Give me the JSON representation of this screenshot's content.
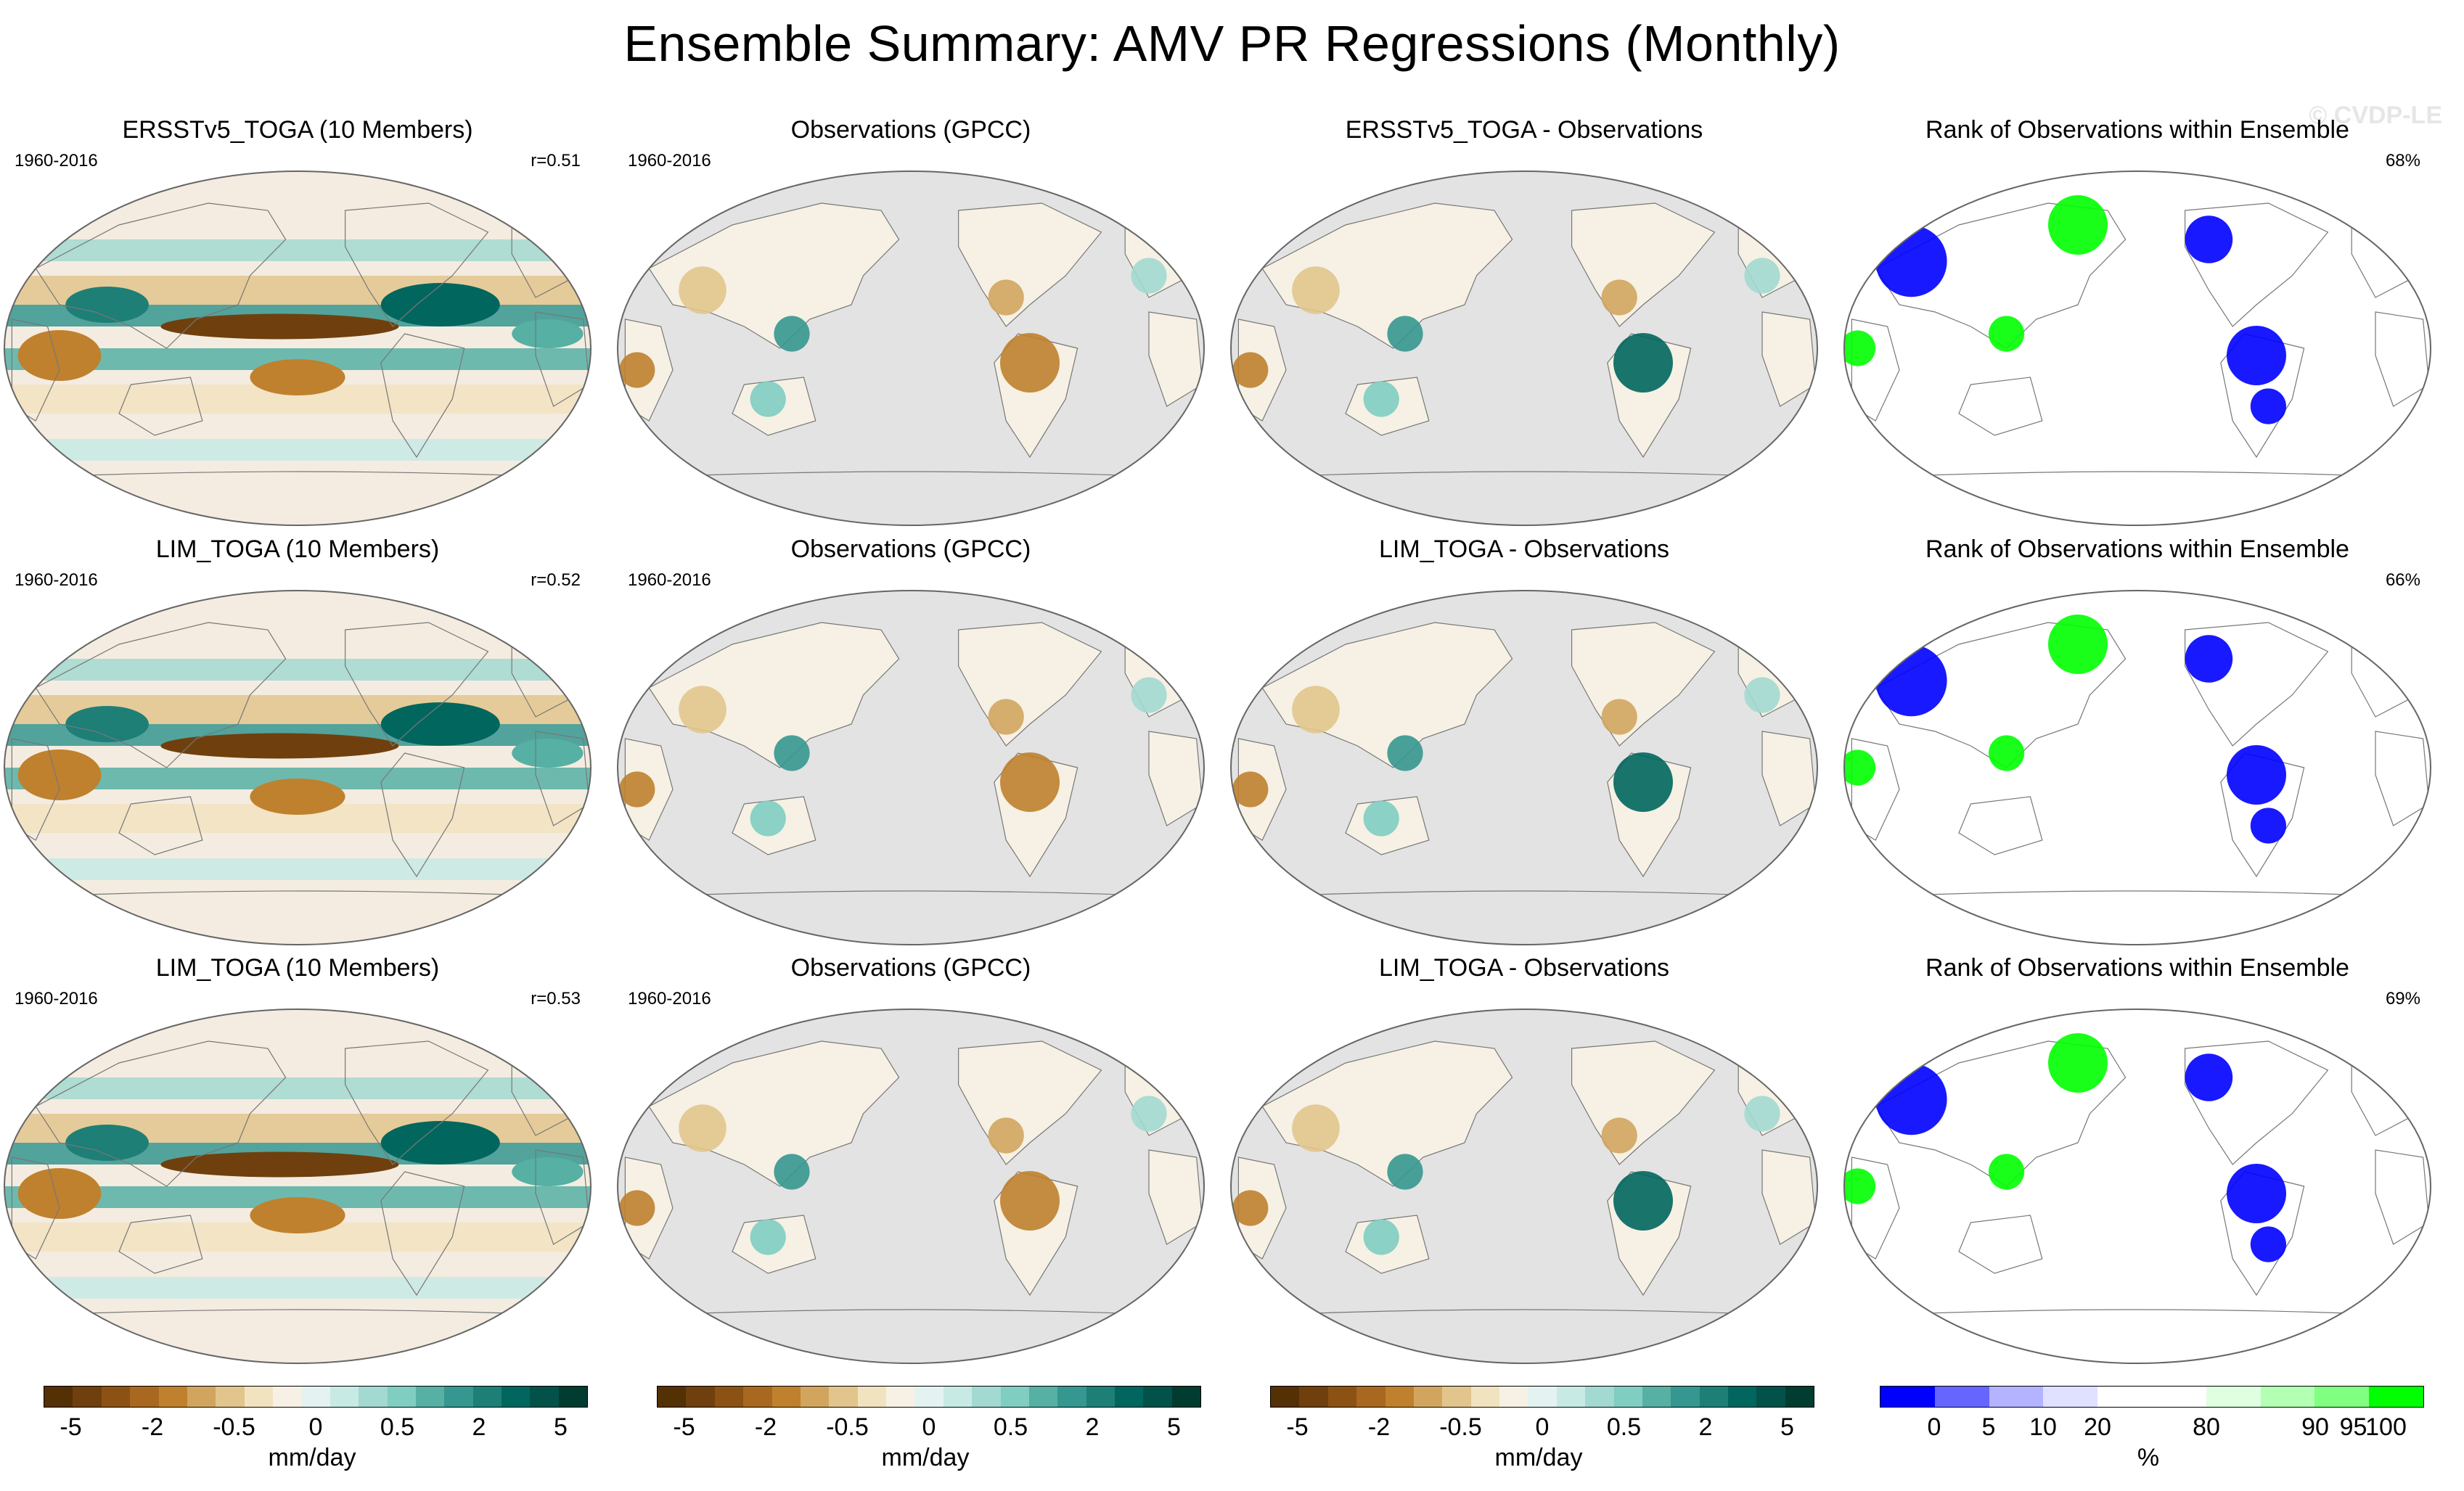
{
  "title": "Ensemble Summary: AMV PR Regressions (Monthly)",
  "watermark": "© CVDP-LE",
  "rows": [
    {
      "panels": [
        {
          "title": "ERSSTv5_TOGA (10 Members)",
          "left": "1960-2016",
          "right": "r=0.51",
          "kind": "model"
        },
        {
          "title": "Observations (GPCC)",
          "left": "1960-2016",
          "right": "",
          "kind": "obs"
        },
        {
          "title": "ERSSTv5_TOGA - Observations",
          "left": "",
          "right": "",
          "kind": "diff"
        },
        {
          "title": "Rank of Observations within Ensemble",
          "left": "",
          "right": "68%",
          "kind": "rank"
        }
      ]
    },
    {
      "panels": [
        {
          "title": "LIM_TOGA (10 Members)",
          "left": "1960-2016",
          "right": "r=0.52",
          "kind": "model"
        },
        {
          "title": "Observations (GPCC)",
          "left": "1960-2016",
          "right": "",
          "kind": "obs"
        },
        {
          "title": "LIM_TOGA - Observations",
          "left": "",
          "right": "",
          "kind": "diff"
        },
        {
          "title": "Rank of Observations within Ensemble",
          "left": "",
          "right": "66%",
          "kind": "rank"
        }
      ]
    },
    {
      "panels": [
        {
          "title": "LIM_TOGA (10 Members)",
          "left": "1960-2016",
          "right": "r=0.53",
          "kind": "model"
        },
        {
          "title": "Observations (GPCC)",
          "left": "1960-2016",
          "right": "",
          "kind": "obs"
        },
        {
          "title": "LIM_TOGA - Observations",
          "left": "",
          "right": "",
          "kind": "diff"
        },
        {
          "title": "Rank of Observations within Ensemble",
          "left": "",
          "right": "69%",
          "kind": "rank"
        }
      ]
    }
  ],
  "colorbars": [
    {
      "colors": [
        "#543005",
        "#6f400d",
        "#8c5214",
        "#a9681f",
        "#bf812d",
        "#d2a55f",
        "#e2c58c",
        "#f1e3c0",
        "#f6f1e4",
        "#e4f3f1",
        "#c7eae5",
        "#a2d9d0",
        "#80cdc1",
        "#56b0a4",
        "#35978f",
        "#1e7f77",
        "#01665e",
        "#02524a",
        "#003c30"
      ],
      "labels": [
        "-5",
        "-2",
        "-0.5",
        "0",
        "0.5",
        "2",
        "5"
      ],
      "unit": "mm/day"
    },
    {
      "colors": [
        "#543005",
        "#6f400d",
        "#8c5214",
        "#a9681f",
        "#bf812d",
        "#d2a55f",
        "#e2c58c",
        "#f1e3c0",
        "#f6f1e4",
        "#e4f3f1",
        "#c7eae5",
        "#a2d9d0",
        "#80cdc1",
        "#56b0a4",
        "#35978f",
        "#1e7f77",
        "#01665e",
        "#02524a",
        "#003c30"
      ],
      "labels": [
        "-5",
        "-2",
        "-0.5",
        "0",
        "0.5",
        "2",
        "5"
      ],
      "unit": "mm/day"
    },
    {
      "colors": [
        "#543005",
        "#6f400d",
        "#8c5214",
        "#a9681f",
        "#bf812d",
        "#d2a55f",
        "#e2c58c",
        "#f1e3c0",
        "#f6f1e4",
        "#e4f3f1",
        "#c7eae5",
        "#a2d9d0",
        "#80cdc1",
        "#56b0a4",
        "#35978f",
        "#1e7f77",
        "#01665e",
        "#02524a",
        "#003c30"
      ],
      "labels": [
        "-5",
        "-2",
        "-0.5",
        "0",
        "0.5",
        "2",
        "5"
      ],
      "unit": "mm/day"
    },
    {
      "colors": [
        "#0000ff",
        "#6666ff",
        "#b3b3ff",
        "#e0e0ff",
        "#ffffff",
        "#ffffff",
        "#e0ffe0",
        "#b3ffb3",
        "#80ff80",
        "#00ff00"
      ],
      "labels": [
        "0",
        "5",
        "10",
        "20",
        "80",
        "90",
        "95",
        "100"
      ],
      "unit": "%"
    }
  ],
  "palette": {
    "ocean_fill": "#e3e3e3",
    "coast": "#777777",
    "rank_low": "#0000ff",
    "rank_high": "#00ff00"
  }
}
